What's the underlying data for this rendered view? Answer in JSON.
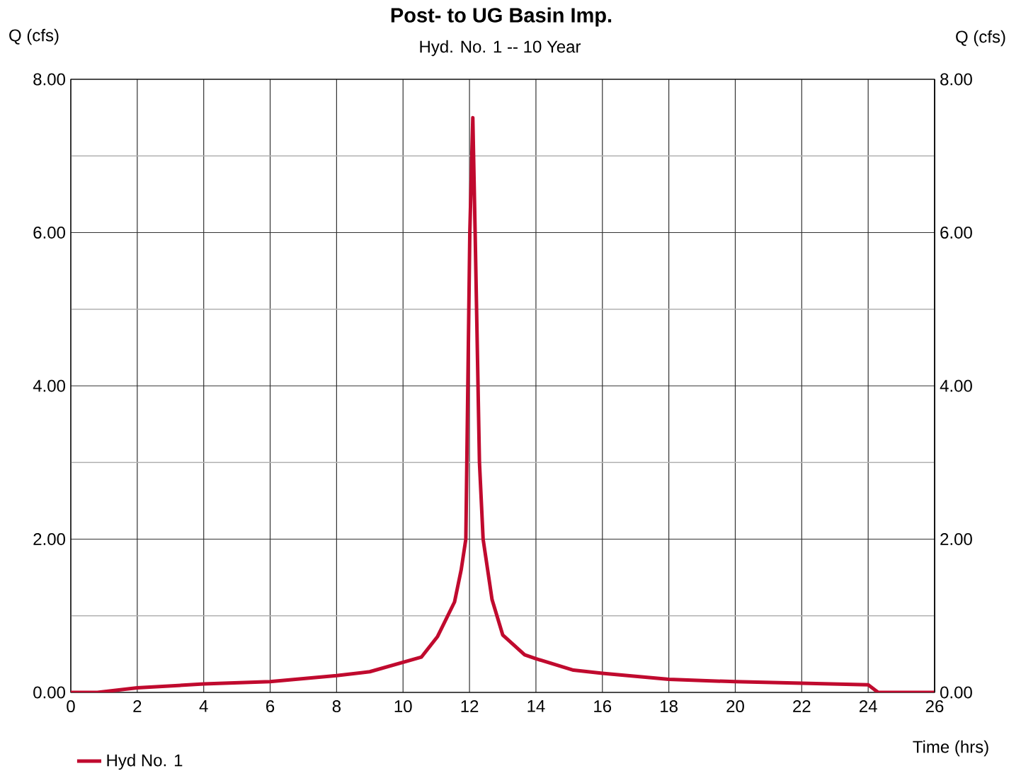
{
  "chart_data": {
    "type": "line",
    "title": "Post- to UG Basin Imp.",
    "subtitle": "Hyd. No. 1 -- 10 Year",
    "xlabel": "Time (hrs)",
    "ylabel": "Q (cfs)",
    "y2label": "Q (cfs)",
    "series": [
      {
        "name": "Hyd No. 1",
        "color": "#c00a2e",
        "x": [
          0,
          0.8,
          2,
          4,
          6,
          8,
          9.0,
          10.55,
          11.04,
          11.55,
          11.75,
          11.89,
          12.01,
          12.1,
          12.17,
          12.3,
          12.41,
          12.68,
          13.0,
          13.66,
          14,
          15.13,
          16,
          18,
          20,
          22,
          24,
          24.3,
          26
        ],
        "values": [
          0,
          0,
          0.06,
          0.11,
          0.14,
          0.22,
          0.27,
          0.46,
          0.73,
          1.18,
          1.6,
          2.0,
          6.0,
          7.5,
          6.0,
          3.0,
          2.0,
          1.21,
          0.75,
          0.49,
          0.44,
          0.29,
          0.25,
          0.17,
          0.14,
          0.12,
          0.1,
          0,
          0
        ]
      }
    ],
    "xlim": [
      0,
      26
    ],
    "xticks": [
      0,
      2,
      4,
      6,
      8,
      10,
      12,
      14,
      16,
      18,
      20,
      22,
      24,
      26
    ],
    "ylim": [
      0,
      8
    ],
    "yticks": [
      {
        "value": 0,
        "label": "0.00"
      },
      {
        "value": 2,
        "label": "2.00"
      },
      {
        "value": 4,
        "label": "4.00"
      },
      {
        "value": 6,
        "label": "6.00"
      },
      {
        "value": 8,
        "label": "8.00"
      }
    ],
    "y2lim": [
      0,
      8
    ],
    "y2ticks": [
      {
        "value": 0,
        "label": "0.00"
      },
      {
        "value": 2,
        "label": "2.00"
      },
      {
        "value": 4,
        "label": "4.00"
      },
      {
        "value": 6,
        "label": "6.00"
      },
      {
        "value": 8,
        "label": "8.00"
      }
    ],
    "grid": true,
    "legend": "bottom left",
    "marker": "none",
    "line_style": "solid"
  }
}
